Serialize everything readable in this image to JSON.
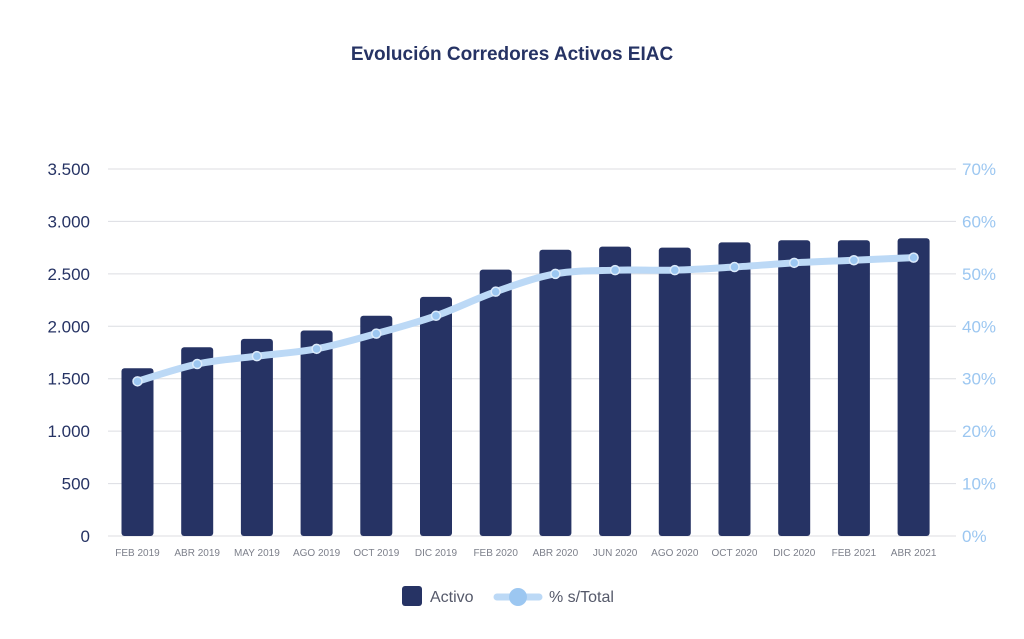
{
  "chart_data": {
    "type": "bar+line",
    "title": "Evolución Corredores Activos EIAC",
    "categories": [
      "FEB 2019",
      "ABR 2019",
      "MAY 2019",
      "AGO 2019",
      "OCT 2019",
      "DIC 2019",
      "FEB 2020",
      "ABR 2020",
      "JUN 2020",
      "AGO 2020",
      "OCT 2020",
      "DIC 2020",
      "FEB 2021",
      "ABR 2021"
    ],
    "series": [
      {
        "name": "Activo",
        "type": "bar",
        "axis": "left",
        "color": "#263364",
        "values": [
          1600,
          1800,
          1880,
          1960,
          2100,
          2280,
          2540,
          2730,
          2760,
          2750,
          2800,
          2820,
          2820,
          2840
        ]
      },
      {
        "name": "% s/Total",
        "type": "line",
        "axis": "right",
        "color": "#bcd9f6",
        "marker_color": "#9cc7f1",
        "values": [
          29.5,
          32.8,
          34.3,
          35.7,
          38.6,
          42.0,
          46.6,
          50.0,
          50.7,
          50.7,
          51.3,
          52.1,
          52.6,
          53.1
        ]
      }
    ],
    "y_left": {
      "ylim": [
        0,
        3500
      ],
      "ticks": [
        0,
        500,
        1000,
        1500,
        2000,
        2500,
        3000,
        3500
      ],
      "tick_labels": [
        "0",
        "500",
        "1.000",
        "1.500",
        "2.000",
        "2.500",
        "3.000",
        "3.500"
      ]
    },
    "y_right": {
      "ylim": [
        0,
        70
      ],
      "ticks": [
        0,
        10,
        20,
        30,
        40,
        50,
        60,
        70
      ],
      "tick_labels": [
        "0%",
        "10%",
        "20%",
        "30%",
        "40%",
        "50%",
        "60%",
        "70%"
      ]
    },
    "grid": true,
    "legend_position": "bottom-center",
    "legend": [
      "Activo",
      "% s/Total"
    ]
  }
}
